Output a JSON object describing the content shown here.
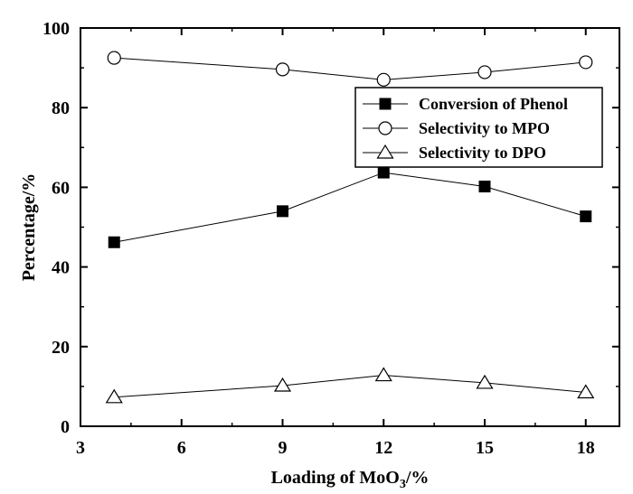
{
  "chart_data": {
    "type": "line",
    "x": [
      4,
      9,
      12,
      15,
      18
    ],
    "series": [
      {
        "name": "Conversion of Phenol",
        "marker": "filled-square",
        "values": [
          46.2,
          54.0,
          63.7,
          60.2,
          52.7
        ]
      },
      {
        "name": "Selectivity to MPO",
        "marker": "open-circle",
        "values": [
          92.5,
          89.6,
          87.0,
          88.9,
          91.4
        ]
      },
      {
        "name": "Selectivity to DPO",
        "marker": "open-triangle",
        "values": [
          7.3,
          10.2,
          12.8,
          10.9,
          8.5
        ]
      }
    ],
    "title": "",
    "xlabel": {
      "main": "Loading of MoO",
      "sub": "3",
      "unit": "/%"
    },
    "ylabel": "Percentage/%",
    "xlim": [
      3,
      19
    ],
    "ylim": [
      0,
      100
    ],
    "xticks": [
      3,
      6,
      9,
      12,
      15,
      18
    ],
    "yticks": [
      0,
      20,
      40,
      60,
      80,
      100
    ],
    "xtick_labels": [
      "3",
      "6",
      "9",
      "12",
      "15",
      "18"
    ],
    "ytick_labels": [
      "0",
      "20",
      "40",
      "60",
      "80",
      "100"
    ],
    "grid": false,
    "legend_position": "top-right",
    "colors": {
      "line": "#000000",
      "marker_fill": "#000000",
      "marker_open": "#ffffff"
    }
  }
}
